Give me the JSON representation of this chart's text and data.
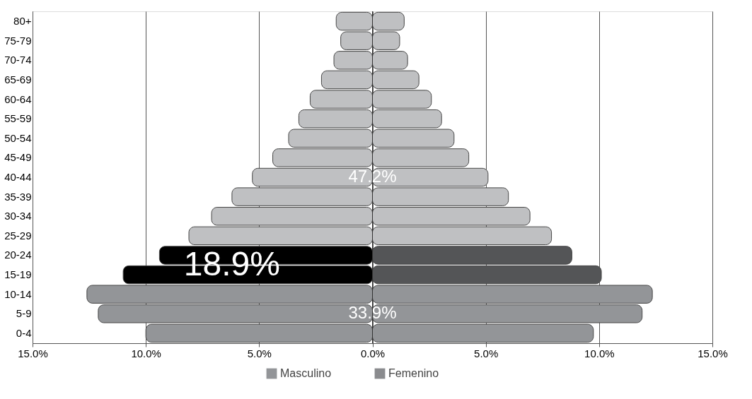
{
  "chart_data": {
    "type": "bar",
    "orientation": "horizontal",
    "stacked": true,
    "categories": [
      "80+",
      "75-79",
      "70-74",
      "65-69",
      "60-64",
      "55-59",
      "50-54",
      "45-49",
      "40-44",
      "35-39",
      "30-34",
      "25-29",
      "20-24",
      "15-19",
      "10-14",
      "5-9",
      "0-4"
    ],
    "series": [
      {
        "name": "Masculino",
        "color": "#939598",
        "values": [
          -1.6,
          -1.4,
          -1.7,
          -2.25,
          -2.75,
          -3.25,
          -3.7,
          -4.4,
          -5.3,
          -6.2,
          -7.1,
          -8.1,
          -9.4,
          -11.0,
          -12.6,
          -12.1,
          -10.0
        ],
        "colors": [
          "#bfc0c2",
          "#bfc0c2",
          "#bfc0c2",
          "#bfc0c2",
          "#bfc0c2",
          "#bfc0c2",
          "#bfc0c2",
          "#bfc0c2",
          "#bfc0c2",
          "#bfc0c2",
          "#bfc0c2",
          "#bfc0c2",
          "#000000",
          "#000000",
          "#939598",
          "#939598",
          "#939598"
        ]
      },
      {
        "name": "Femenino",
        "color": "#8a8b8e",
        "values": [
          1.4,
          1.2,
          1.55,
          2.05,
          2.6,
          3.05,
          3.6,
          4.25,
          5.1,
          6.0,
          6.95,
          7.9,
          8.8,
          10.1,
          12.35,
          11.9,
          9.75
        ],
        "colors": [
          "#bfc0c2",
          "#bfc0c2",
          "#bfc0c2",
          "#bfc0c2",
          "#bfc0c2",
          "#bfc0c2",
          "#bfc0c2",
          "#bfc0c2",
          "#bfc0c2",
          "#bfc0c2",
          "#bfc0c2",
          "#bfc0c2",
          "#545557",
          "#545557",
          "#939598",
          "#939598",
          "#939598"
        ]
      }
    ],
    "xlim": [
      -15,
      15
    ],
    "xticks": [
      {
        "value": -15,
        "label": "15.0%"
      },
      {
        "value": -10,
        "label": "10.0%"
      },
      {
        "value": -5,
        "label": "5.0%"
      },
      {
        "value": 0,
        "label": "0.0%"
      },
      {
        "value": 5,
        "label": "5.0%"
      },
      {
        "value": 10,
        "label": "10.0%"
      },
      {
        "value": 15,
        "label": "15.0%"
      }
    ],
    "grid": "x",
    "legend": "bottom",
    "ref_lines": [
      {
        "axis": "x",
        "value": 0,
        "color": "#333333"
      }
    ],
    "annotations": [
      "47.2%",
      "18.9%",
      "33.9%"
    ]
  }
}
